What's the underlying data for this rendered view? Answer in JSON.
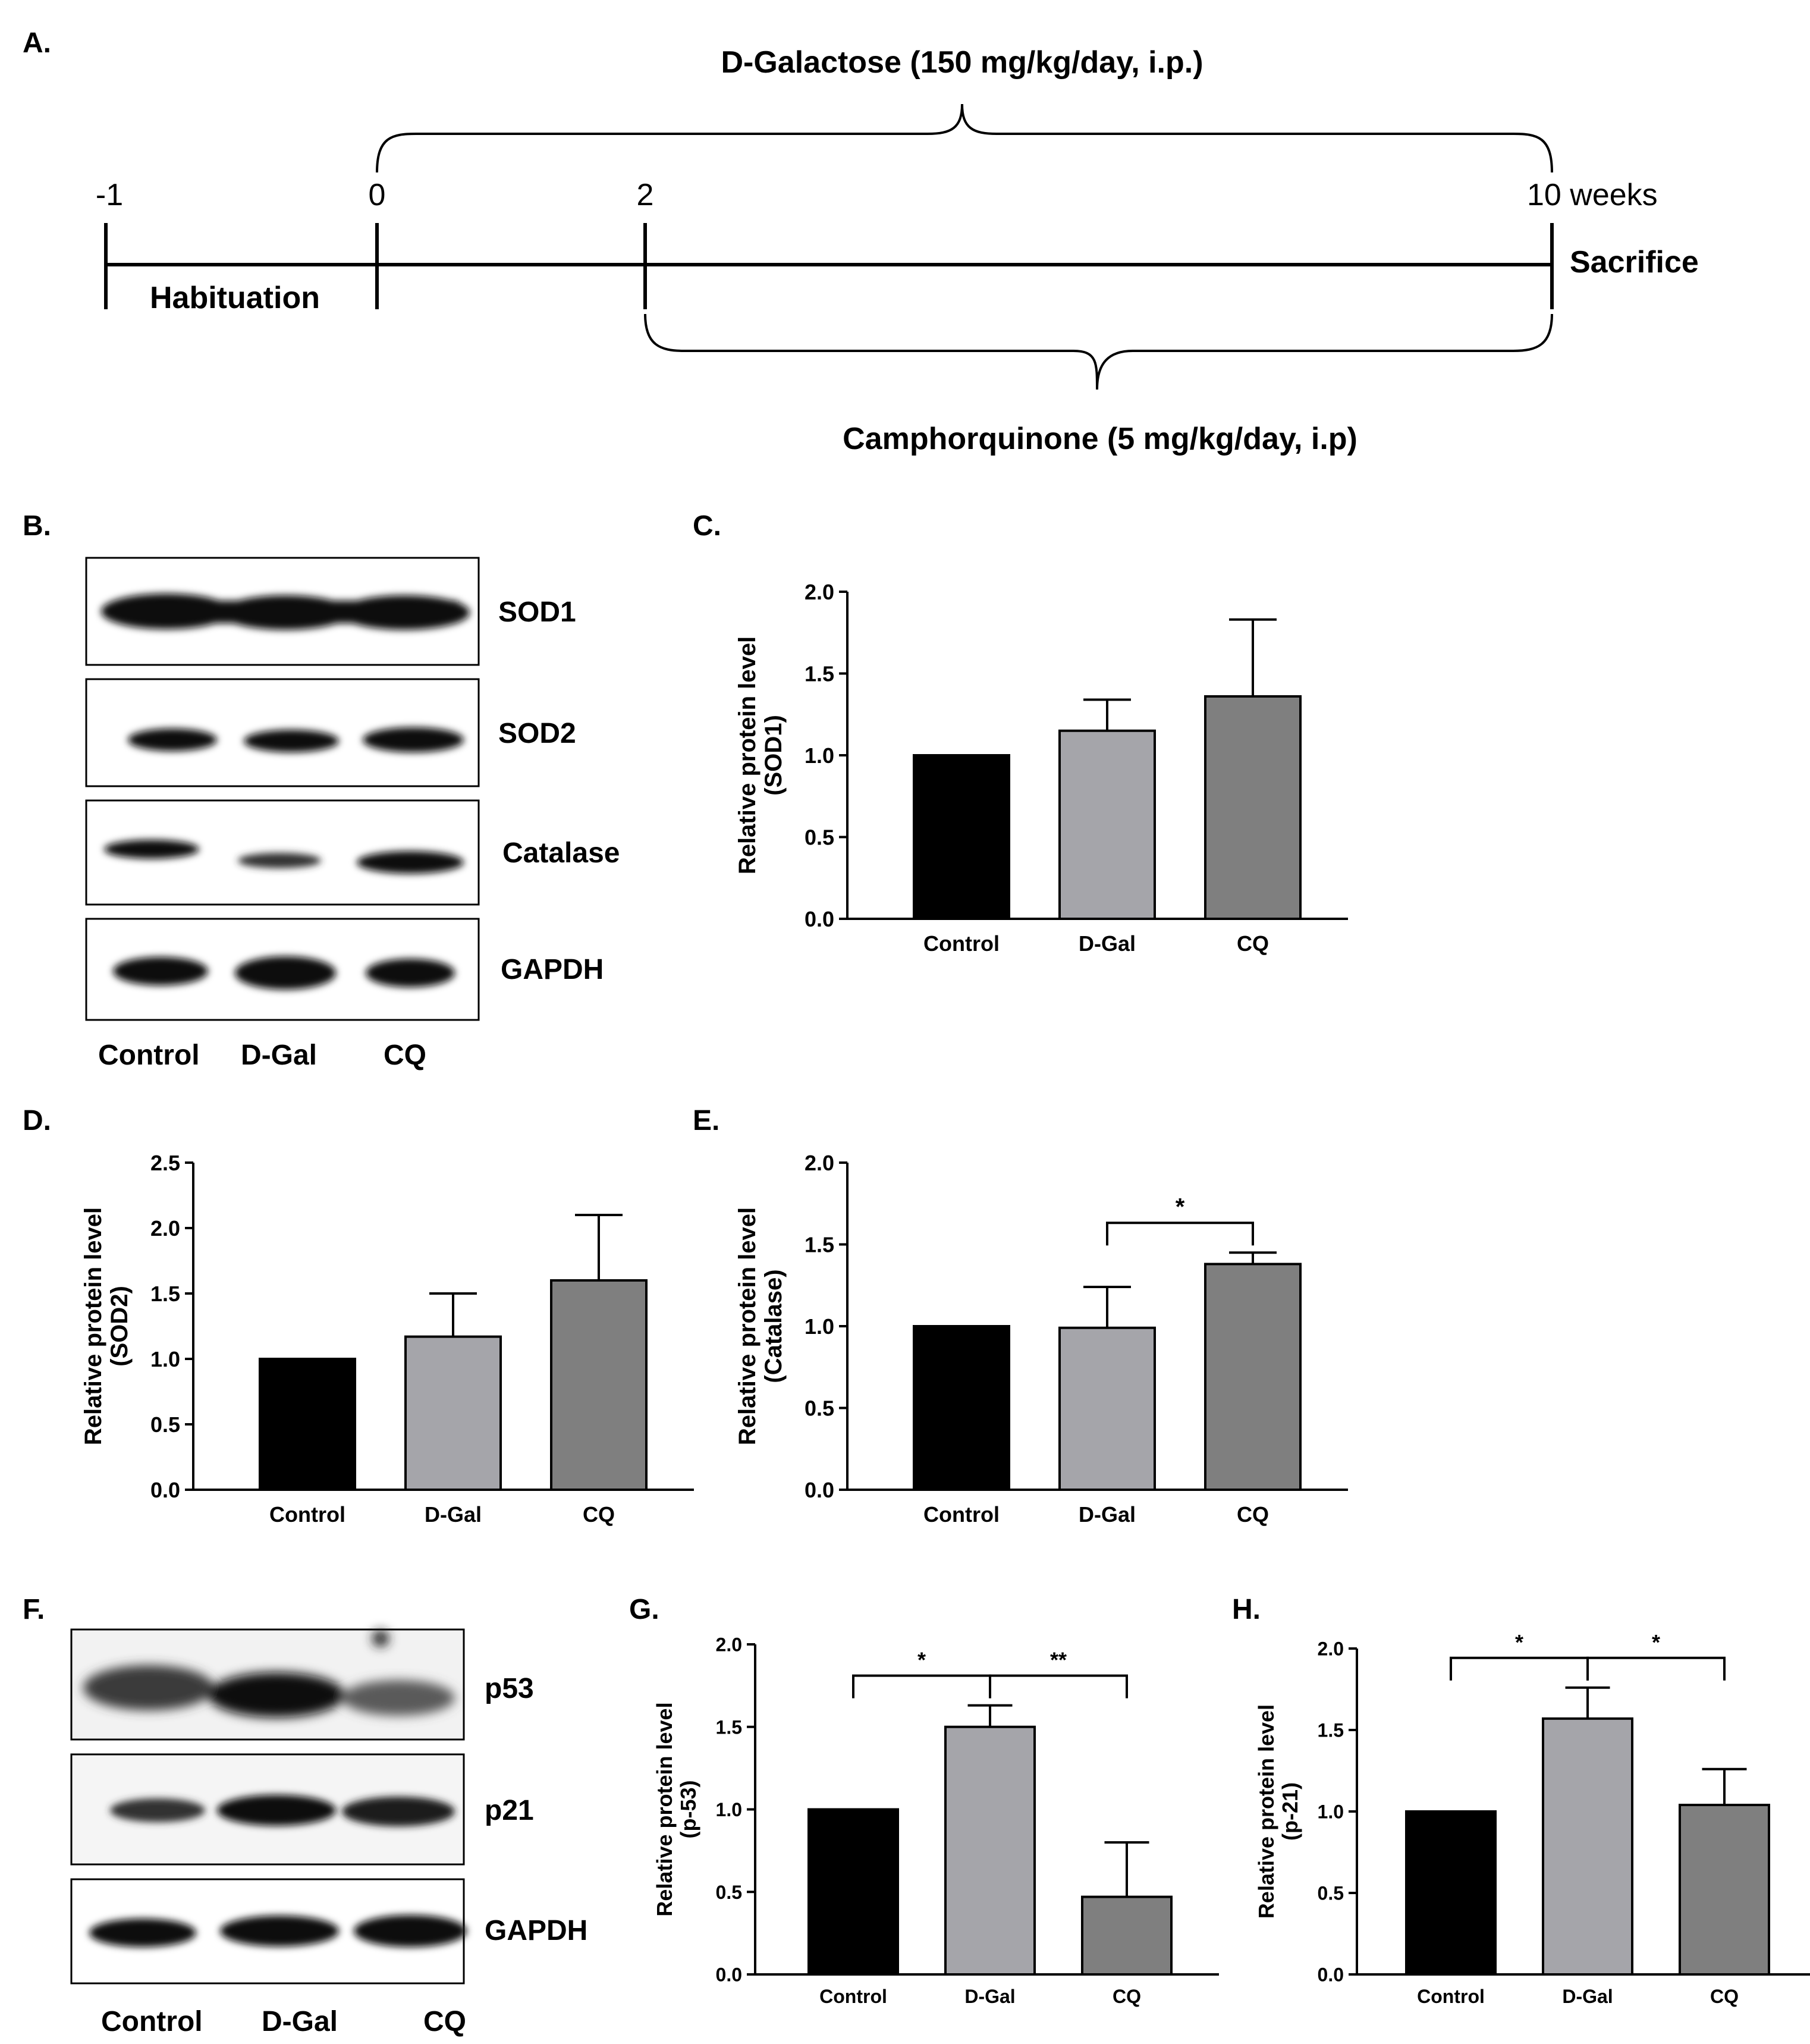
{
  "panels": {
    "A": "A.",
    "B": "B.",
    "C": "C.",
    "D": "D.",
    "E": "E.",
    "F": "F.",
    "G": "G.",
    "H": "H."
  },
  "timeline": {
    "ticks": [
      "-1",
      "0",
      "2",
      "10 weeks"
    ],
    "habituation": "Habituation",
    "sacrifice": "Sacrifice",
    "dgal_label": "D-Galactose (150 mg/kg/day, i.p.)",
    "cq_label": "Camphorquinone (5 mg/kg/day, i.p)"
  },
  "blot_b": {
    "bands": [
      "SOD1",
      "SOD2",
      "Catalase",
      "GAPDH"
    ],
    "lanes": [
      "Control",
      "D-Gal",
      "CQ"
    ]
  },
  "blot_f": {
    "bands": [
      "p53",
      "p21",
      "GAPDH"
    ],
    "lanes": [
      "Control",
      "D-Gal",
      "CQ"
    ]
  },
  "colors": {
    "control": "#000000",
    "dgal": "#a5a5aa",
    "cq": "#7f7f7f",
    "axis": "#000000"
  },
  "chart_data": [
    {
      "panel": "C",
      "type": "bar",
      "categories": [
        "Control",
        "D-Gal",
        "CQ"
      ],
      "values": [
        1.0,
        1.15,
        1.36
      ],
      "errors": [
        0.0,
        0.19,
        0.47
      ],
      "ylabel": [
        "Relative protein level",
        "(SOD1)"
      ],
      "ylim": [
        0,
        2.0
      ],
      "yticks": [
        "0.0",
        "0.5",
        "1.0",
        "1.5",
        "2.0"
      ],
      "annotations": []
    },
    {
      "panel": "D",
      "type": "bar",
      "categories": [
        "Control",
        "D-Gal",
        "CQ"
      ],
      "values": [
        1.0,
        1.17,
        1.6
      ],
      "errors": [
        0.0,
        0.33,
        0.5
      ],
      "ylabel": [
        "Relative protein level",
        "(SOD2)"
      ],
      "ylim": [
        0,
        2.5
      ],
      "yticks": [
        "0.0",
        "0.5",
        "1.0",
        "1.5",
        "2.0",
        "2.5"
      ],
      "annotations": []
    },
    {
      "panel": "E",
      "type": "bar",
      "categories": [
        "Control",
        "D-Gal",
        "CQ"
      ],
      "values": [
        1.0,
        0.99,
        1.38
      ],
      "errors": [
        0.0,
        0.25,
        0.07
      ],
      "ylabel": [
        "Relative protein level",
        "(Catalase)"
      ],
      "ylim": [
        0,
        2.0
      ],
      "yticks": [
        "0.0",
        "0.5",
        "1.0",
        "1.5",
        "2.0"
      ],
      "annotations": [
        {
          "from": 1,
          "to": 2,
          "label": "*"
        }
      ]
    },
    {
      "panel": "G",
      "type": "bar",
      "categories": [
        "Control",
        "D-Gal",
        "CQ"
      ],
      "values": [
        1.0,
        1.5,
        0.47
      ],
      "errors": [
        0.0,
        0.13,
        0.33
      ],
      "ylabel": [
        "Relative protein level",
        "(p-53)"
      ],
      "ylim": [
        0,
        2.0
      ],
      "yticks": [
        "0.0",
        "0.5",
        "1.0",
        "1.5",
        "2.0"
      ],
      "annotations": [
        {
          "from": 0,
          "to": 1,
          "label": "*"
        },
        {
          "from": 1,
          "to": 2,
          "label": "**"
        }
      ]
    },
    {
      "panel": "H",
      "type": "bar",
      "categories": [
        "Control",
        "D-Gal",
        "CQ"
      ],
      "values": [
        1.0,
        1.57,
        1.04
      ],
      "errors": [
        0.0,
        0.19,
        0.22
      ],
      "ylabel": [
        "Relative protein level",
        "(p-21)"
      ],
      "ylim": [
        0,
        2.0
      ],
      "yticks": [
        "0.0",
        "0.5",
        "1.0",
        "1.5",
        "2.0"
      ],
      "annotations": [
        {
          "from": 0,
          "to": 1,
          "label": "*"
        },
        {
          "from": 1,
          "to": 2,
          "label": "*"
        }
      ]
    }
  ]
}
